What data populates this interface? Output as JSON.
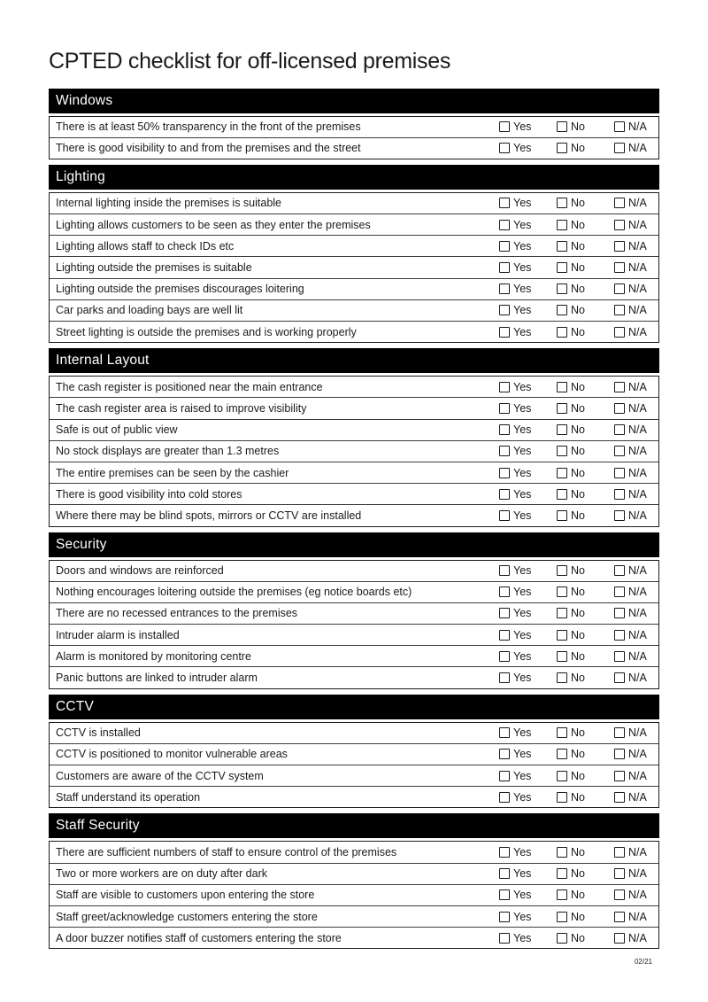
{
  "title": "CPTED checklist for off-licensed premises",
  "footer": "02/21",
  "options": [
    "Yes",
    "No",
    "N/A"
  ],
  "colors": {
    "band_bg": "#000000",
    "band_text": "#ffffff",
    "text": "#1a1a1a"
  },
  "sections": [
    {
      "title": "Windows",
      "items": [
        "There is at least 50% transparency in the front of the premises",
        "There is good visibility to and from the premises and the street"
      ]
    },
    {
      "title": "Lighting",
      "items": [
        "Internal lighting inside the premises is suitable",
        "Lighting allows customers to be seen as they enter the premises",
        "Lighting allows staff to check IDs etc",
        "Lighting outside the premises is suitable",
        "Lighting outside the premises discourages loitering",
        "Car parks and loading bays are well lit",
        "Street lighting is outside the premises and is working properly"
      ]
    },
    {
      "title": "Internal Layout",
      "items": [
        "The cash register is positioned near the main entrance",
        "The cash register area is raised to improve visibility",
        "Safe is out of public view",
        "No stock displays are greater than 1.3 metres",
        "The entire premises can be seen by the cashier",
        "There is good visibility into cold stores",
        "Where there may be blind spots, mirrors or CCTV are installed"
      ]
    },
    {
      "title": "Security",
      "items": [
        "Doors and windows are reinforced",
        "Nothing encourages loitering outside the premises (eg notice boards etc)",
        "There are no recessed entrances to the premises",
        "Intruder alarm is installed",
        "Alarm is monitored by monitoring centre",
        "Panic buttons are linked to intruder alarm"
      ]
    },
    {
      "title": "CCTV",
      "items": [
        "CCTV is installed",
        "CCTV is positioned to monitor vulnerable areas",
        "Customers are aware of the CCTV system",
        "Staff understand its operation"
      ]
    },
    {
      "title": "Staff Security",
      "items": [
        "There are sufficient numbers of staff to ensure control of the premises",
        "Two or more workers are on duty after dark",
        "Staff are visible to customers upon entering the store",
        "Staff greet/acknowledge customers entering the store",
        "A door buzzer notifies staff of customers entering the store"
      ]
    }
  ]
}
